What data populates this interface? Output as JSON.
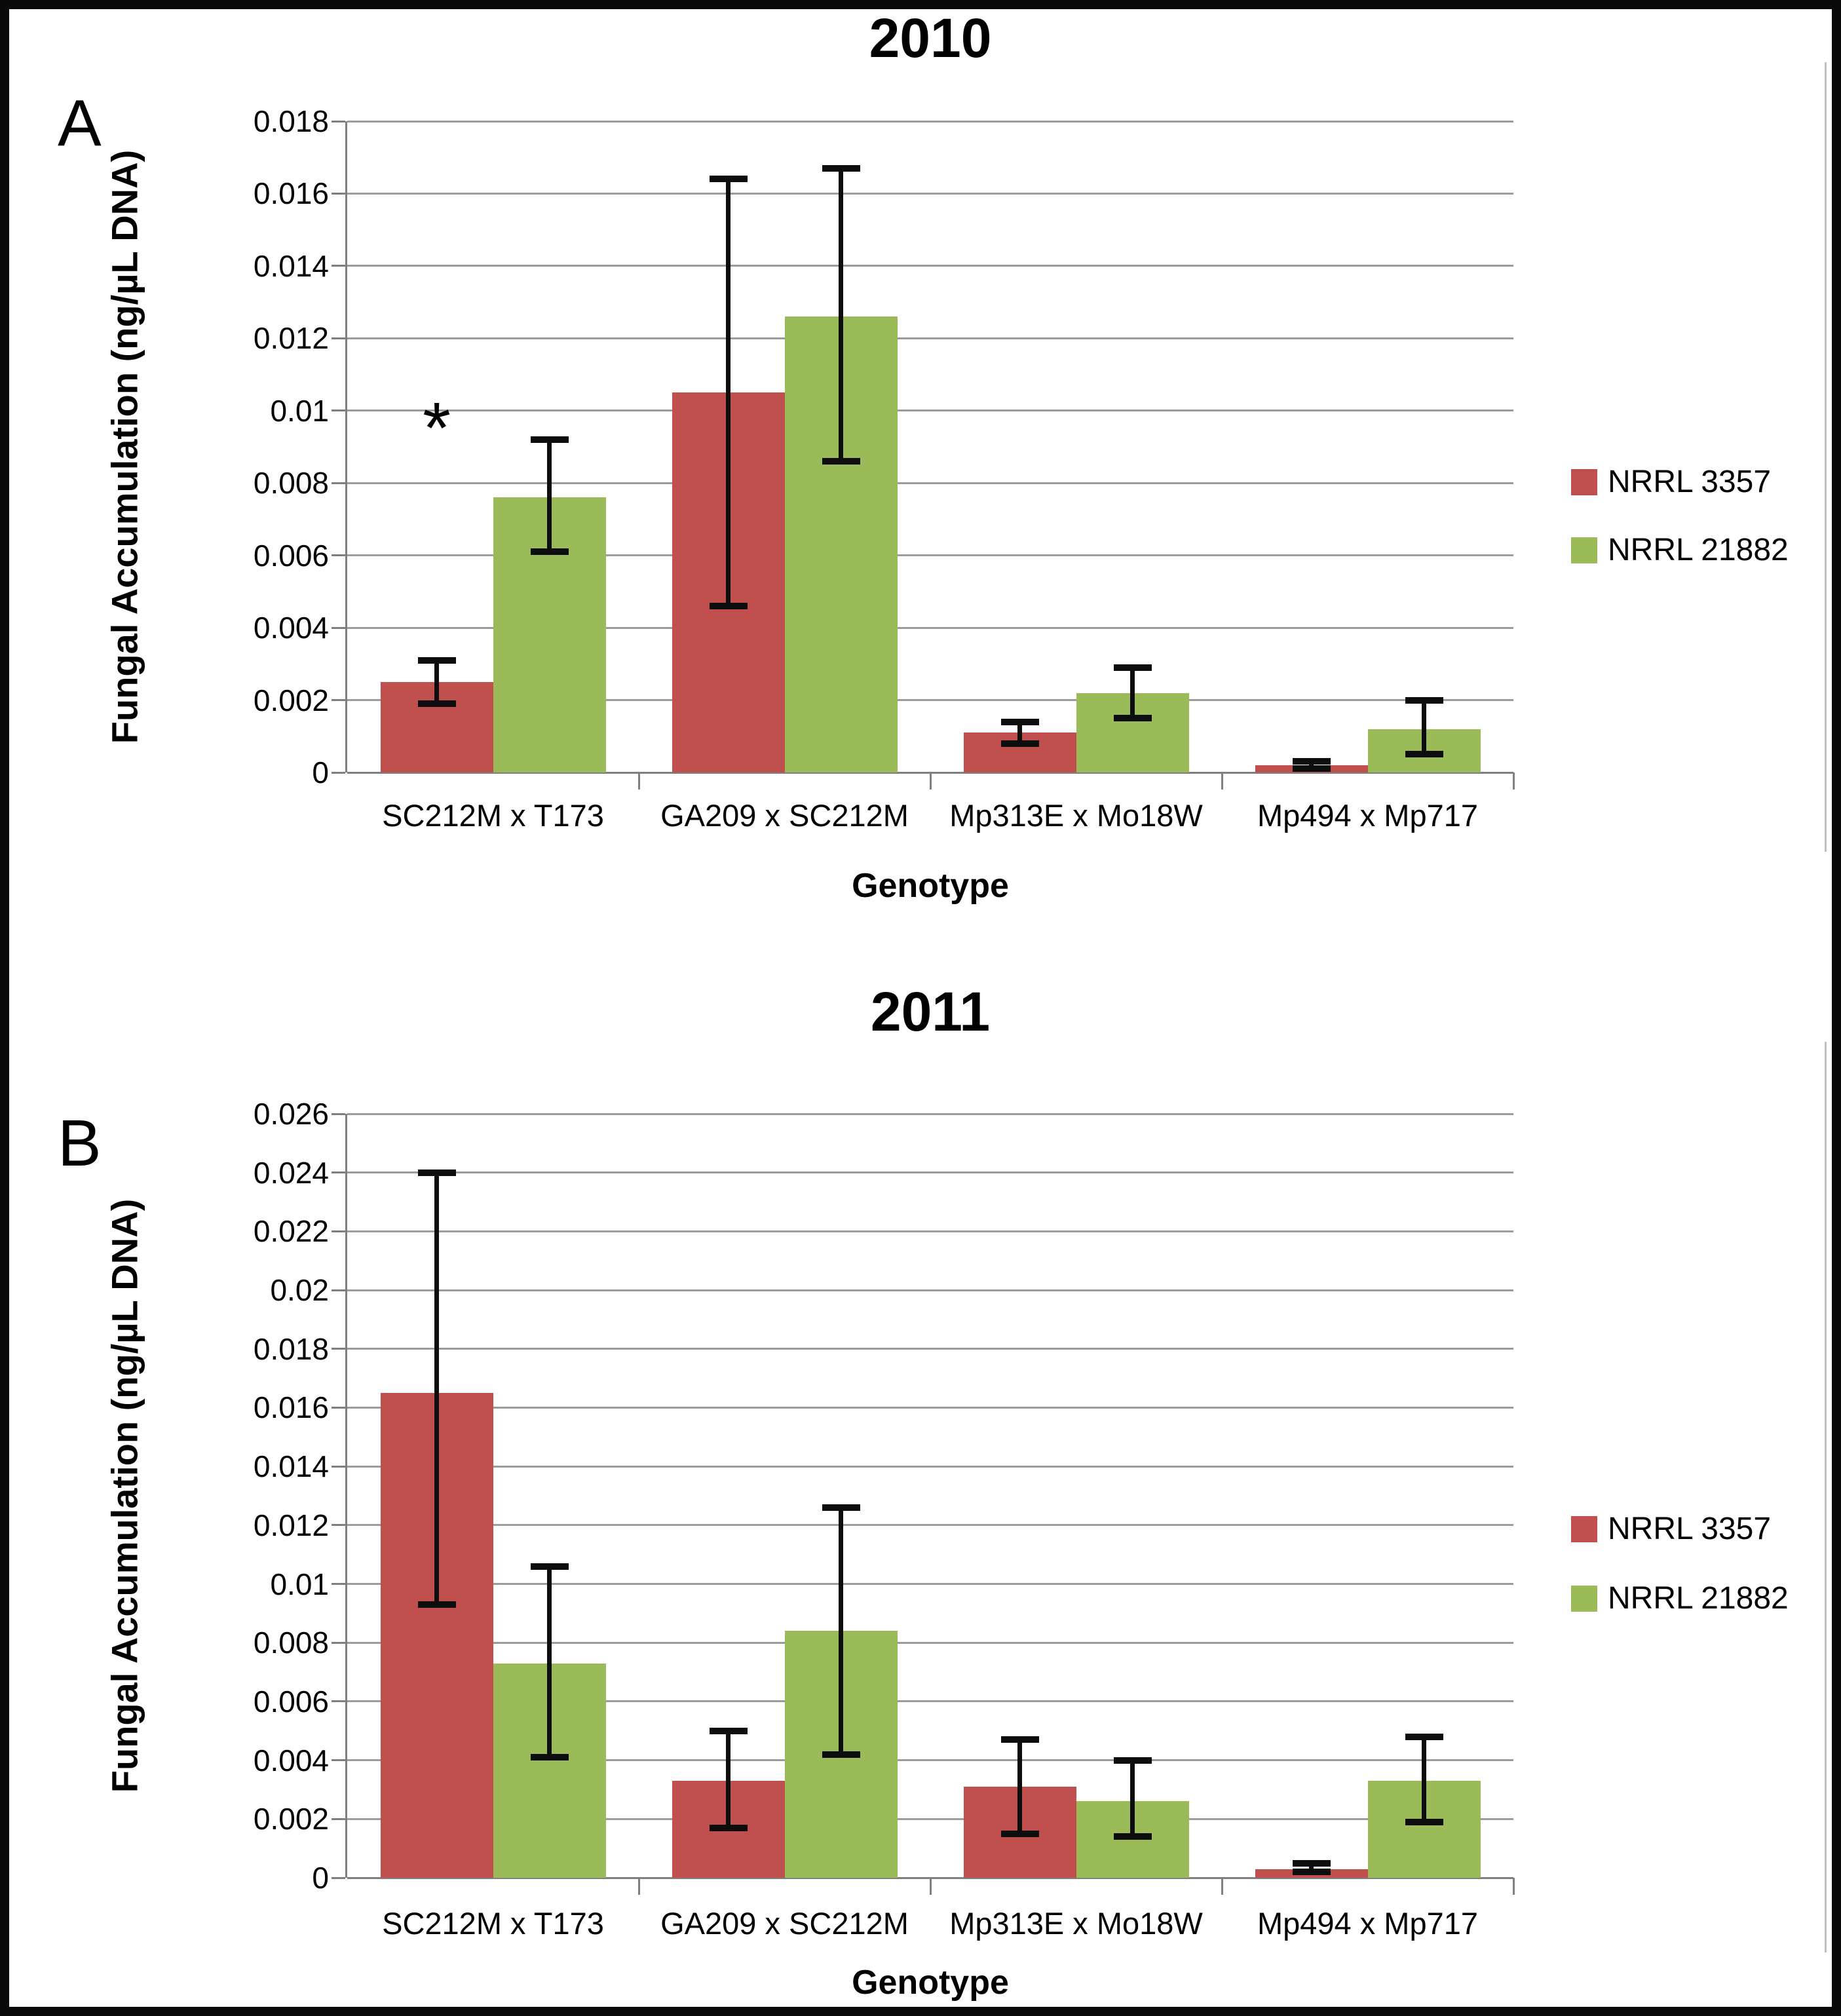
{
  "figure": {
    "panels": [
      {
        "letter": "A",
        "title": "2010"
      },
      {
        "letter": "B",
        "title": "2011"
      }
    ]
  },
  "colors": {
    "series_nrrl_3357": "#C0504D",
    "series_nrrl_21882": "#9BBB59",
    "error_bar": "#0d0d0d"
  },
  "chart_data": [
    {
      "type": "bar",
      "panel_label": "A",
      "title": "2010",
      "xlabel": "Genotype",
      "ylabel": "Fungal Accumulation (ng/µL DNA)",
      "categories": [
        "SC212M x T173",
        "GA209 x SC212M",
        "Mp313E x Mo18W",
        "Mp494 x Mp717"
      ],
      "series": [
        {
          "name": "NRRL 3357",
          "color": "#C0504D",
          "values": [
            0.0025,
            0.0105,
            0.0011,
            0.0002
          ],
          "error_low": [
            0.0019,
            0.0046,
            0.0008,
            0.0001
          ],
          "error_high": [
            0.0031,
            0.0164,
            0.0014,
            0.0003
          ]
        },
        {
          "name": "NRRL 21882",
          "color": "#9BBB59",
          "values": [
            0.0076,
            0.0126,
            0.0022,
            0.0012
          ],
          "error_low": [
            0.0061,
            0.0086,
            0.0015,
            0.0005
          ],
          "error_high": [
            0.0092,
            0.0167,
            0.0029,
            0.002
          ]
        }
      ],
      "ylim": [
        0,
        0.018
      ],
      "ytick_values": [
        0,
        0.002,
        0.004,
        0.006,
        0.008,
        0.01,
        0.012,
        0.014,
        0.016,
        0.018
      ],
      "ytick_labels": [
        "0",
        "0.002",
        "0.004",
        "0.006",
        "0.008",
        "0.01",
        "0.012",
        "0.014",
        "0.016",
        "0.018"
      ],
      "grid": true,
      "legend_position": "right",
      "annotations": [
        {
          "text": "*",
          "category_index": 0,
          "series_index": 0,
          "y_value": 0.0095
        }
      ]
    },
    {
      "type": "bar",
      "panel_label": "B",
      "title": "2011",
      "xlabel": "Genotype",
      "ylabel": "Fungal Accumulation (ng/µL DNA)",
      "categories": [
        "SC212M x T173",
        "GA209 x SC212M",
        "Mp313E x Mo18W",
        "Mp494 x Mp717"
      ],
      "series": [
        {
          "name": "NRRL 3357",
          "color": "#C0504D",
          "values": [
            0.0165,
            0.0033,
            0.0031,
            0.0003
          ],
          "error_low": [
            0.0093,
            0.0017,
            0.0015,
            0.0002
          ],
          "error_high": [
            0.024,
            0.005,
            0.0047,
            0.0005
          ]
        },
        {
          "name": "NRRL 21882",
          "color": "#9BBB59",
          "values": [
            0.0073,
            0.0084,
            0.0026,
            0.0033
          ],
          "error_low": [
            0.0041,
            0.0042,
            0.0014,
            0.0019
          ],
          "error_high": [
            0.0106,
            0.0126,
            0.004,
            0.0048
          ]
        }
      ],
      "ylim": [
        0,
        0.026
      ],
      "ytick_values": [
        0,
        0.002,
        0.004,
        0.006,
        0.008,
        0.01,
        0.012,
        0.014,
        0.016,
        0.018,
        0.02,
        0.022,
        0.024,
        0.026
      ],
      "ytick_labels": [
        "0",
        "0.002",
        "0.004",
        "0.006",
        "0.008",
        "0.01",
        "0.012",
        "0.014",
        "0.016",
        "0.018",
        "0.02",
        "0.022",
        "0.024",
        "0.026"
      ],
      "grid": true,
      "legend_position": "right",
      "annotations": []
    }
  ]
}
